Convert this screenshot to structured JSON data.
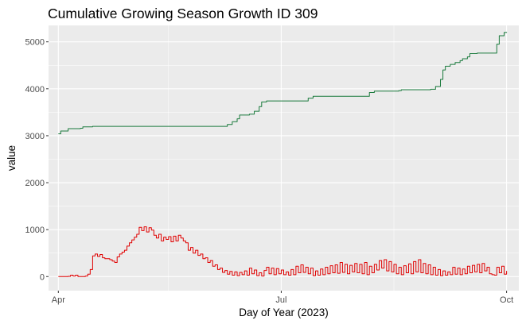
{
  "chart_data": {
    "type": "line",
    "title": "Cumulative Growing Season Growth ID 309",
    "xlabel": "Day of Year (2023)",
    "ylabel": "value",
    "x_range": [
      "2023-03-28",
      "2023-10-06"
    ],
    "ylim": [
      -300,
      5350
    ],
    "x_ticks": [
      {
        "date": "2023-04-01",
        "label": "Apr"
      },
      {
        "date": "2023-07-01",
        "label": "Jul"
      },
      {
        "date": "2023-10-01",
        "label": "Oct"
      }
    ],
    "x_minor_ticks": [
      "2023-05-16",
      "2023-08-16"
    ],
    "y_ticks": [
      0,
      1000,
      2000,
      3000,
      4000,
      5000
    ],
    "background": "#ebebeb",
    "grid": true,
    "legend": "none",
    "series": [
      {
        "color": "#1a7a3c",
        "points": [
          [
            "2023-04-01",
            3040
          ],
          [
            "2023-04-02",
            3100
          ],
          [
            "2023-04-04",
            3100
          ],
          [
            "2023-04-05",
            3150
          ],
          [
            "2023-04-10",
            3160
          ],
          [
            "2023-04-11",
            3190
          ],
          [
            "2023-04-15",
            3200
          ],
          [
            "2023-04-20",
            3200
          ],
          [
            "2023-05-01",
            3200
          ],
          [
            "2023-05-15",
            3200
          ],
          [
            "2023-06-01",
            3200
          ],
          [
            "2023-06-08",
            3200
          ],
          [
            "2023-06-09",
            3240
          ],
          [
            "2023-06-11",
            3300
          ],
          [
            "2023-06-13",
            3360
          ],
          [
            "2023-06-14",
            3440
          ],
          [
            "2023-06-18",
            3460
          ],
          [
            "2023-06-20",
            3520
          ],
          [
            "2023-06-22",
            3620
          ],
          [
            "2023-06-23",
            3720
          ],
          [
            "2023-06-25",
            3740
          ],
          [
            "2023-07-03",
            3740
          ],
          [
            "2023-07-10",
            3740
          ],
          [
            "2023-07-12",
            3800
          ],
          [
            "2023-07-14",
            3840
          ],
          [
            "2023-07-25",
            3840
          ],
          [
            "2023-08-05",
            3840
          ],
          [
            "2023-08-06",
            3920
          ],
          [
            "2023-08-08",
            3950
          ],
          [
            "2023-08-18",
            3960
          ],
          [
            "2023-08-19",
            3980
          ],
          [
            "2023-08-31",
            3990
          ],
          [
            "2023-09-02",
            4050
          ],
          [
            "2023-09-04",
            4200
          ],
          [
            "2023-09-05",
            4400
          ],
          [
            "2023-09-06",
            4480
          ],
          [
            "2023-09-08",
            4520
          ],
          [
            "2023-09-10",
            4560
          ],
          [
            "2023-09-12",
            4600
          ],
          [
            "2023-09-13",
            4640
          ],
          [
            "2023-09-15",
            4680
          ],
          [
            "2023-09-16",
            4750
          ],
          [
            "2023-09-19",
            4760
          ],
          [
            "2023-09-26",
            4760
          ],
          [
            "2023-09-27",
            4950
          ],
          [
            "2023-09-28",
            5130
          ],
          [
            "2023-09-30",
            5200
          ],
          [
            "2023-10-01",
            5210
          ]
        ]
      },
      {
        "color": "#e00000",
        "points": [
          [
            "2023-04-01",
            0
          ],
          [
            "2023-04-03",
            0
          ],
          [
            "2023-04-05",
            5
          ],
          [
            "2023-04-06",
            30
          ],
          [
            "2023-04-07",
            10
          ],
          [
            "2023-04-08",
            30
          ],
          [
            "2023-04-09",
            0
          ],
          [
            "2023-04-12",
            10
          ],
          [
            "2023-04-13",
            50
          ],
          [
            "2023-04-14",
            150
          ],
          [
            "2023-04-15",
            440
          ],
          [
            "2023-04-16",
            480
          ],
          [
            "2023-04-17",
            430
          ],
          [
            "2023-04-18",
            470
          ],
          [
            "2023-04-19",
            400
          ],
          [
            "2023-04-20",
            380
          ],
          [
            "2023-04-22",
            360
          ],
          [
            "2023-04-23",
            330
          ],
          [
            "2023-04-24",
            300
          ],
          [
            "2023-04-25",
            420
          ],
          [
            "2023-04-26",
            480
          ],
          [
            "2023-04-27",
            520
          ],
          [
            "2023-04-28",
            560
          ],
          [
            "2023-04-29",
            650
          ],
          [
            "2023-04-30",
            720
          ],
          [
            "2023-05-01",
            780
          ],
          [
            "2023-05-02",
            840
          ],
          [
            "2023-05-03",
            900
          ],
          [
            "2023-05-04",
            1050
          ],
          [
            "2023-05-05",
            980
          ],
          [
            "2023-05-06",
            1060
          ],
          [
            "2023-05-07",
            950
          ],
          [
            "2023-05-08",
            1040
          ],
          [
            "2023-05-09",
            990
          ],
          [
            "2023-05-10",
            880
          ],
          [
            "2023-05-11",
            820
          ],
          [
            "2023-05-12",
            900
          ],
          [
            "2023-05-13",
            760
          ],
          [
            "2023-05-14",
            840
          ],
          [
            "2023-05-15",
            790
          ],
          [
            "2023-05-16",
            850
          ],
          [
            "2023-05-17",
            740
          ],
          [
            "2023-05-18",
            860
          ],
          [
            "2023-05-19",
            760
          ],
          [
            "2023-05-20",
            880
          ],
          [
            "2023-05-21",
            820
          ],
          [
            "2023-05-22",
            760
          ],
          [
            "2023-05-23",
            720
          ],
          [
            "2023-05-24",
            560
          ],
          [
            "2023-05-25",
            620
          ],
          [
            "2023-05-26",
            500
          ],
          [
            "2023-05-27",
            560
          ],
          [
            "2023-05-28",
            450
          ],
          [
            "2023-05-29",
            480
          ],
          [
            "2023-05-30",
            380
          ],
          [
            "2023-05-31",
            400
          ],
          [
            "2023-06-01",
            300
          ],
          [
            "2023-06-02",
            340
          ],
          [
            "2023-06-03",
            220
          ],
          [
            "2023-06-04",
            250
          ],
          [
            "2023-06-05",
            150
          ],
          [
            "2023-06-06",
            180
          ],
          [
            "2023-06-07",
            90
          ],
          [
            "2023-06-08",
            130
          ],
          [
            "2023-06-09",
            50
          ],
          [
            "2023-06-10",
            110
          ],
          [
            "2023-06-11",
            30
          ],
          [
            "2023-06-12",
            100
          ],
          [
            "2023-06-13",
            20
          ],
          [
            "2023-06-14",
            90
          ],
          [
            "2023-06-15",
            40
          ],
          [
            "2023-06-16",
            120
          ],
          [
            "2023-06-17",
            30
          ],
          [
            "2023-06-18",
            180
          ],
          [
            "2023-06-19",
            60
          ],
          [
            "2023-06-20",
            140
          ],
          [
            "2023-06-21",
            20
          ],
          [
            "2023-06-22",
            80
          ],
          [
            "2023-06-23",
            10
          ],
          [
            "2023-06-24",
            130
          ],
          [
            "2023-06-25",
            200
          ],
          [
            "2023-06-26",
            60
          ],
          [
            "2023-06-27",
            180
          ],
          [
            "2023-06-28",
            40
          ],
          [
            "2023-06-29",
            170
          ],
          [
            "2023-06-30",
            60
          ],
          [
            "2023-07-01",
            140
          ],
          [
            "2023-07-02",
            40
          ],
          [
            "2023-07-03",
            100
          ],
          [
            "2023-07-04",
            30
          ],
          [
            "2023-07-05",
            150
          ],
          [
            "2023-07-06",
            40
          ],
          [
            "2023-07-07",
            220
          ],
          [
            "2023-07-08",
            80
          ],
          [
            "2023-07-09",
            250
          ],
          [
            "2023-07-10",
            90
          ],
          [
            "2023-07-11",
            200
          ],
          [
            "2023-07-12",
            60
          ],
          [
            "2023-07-13",
            180
          ],
          [
            "2023-07-14",
            20
          ],
          [
            "2023-07-15",
            120
          ],
          [
            "2023-07-16",
            30
          ],
          [
            "2023-07-17",
            160
          ],
          [
            "2023-07-18",
            40
          ],
          [
            "2023-07-19",
            200
          ],
          [
            "2023-07-20",
            60
          ],
          [
            "2023-07-21",
            230
          ],
          [
            "2023-07-22",
            80
          ],
          [
            "2023-07-23",
            250
          ],
          [
            "2023-07-24",
            70
          ],
          [
            "2023-07-25",
            300
          ],
          [
            "2023-07-26",
            90
          ],
          [
            "2023-07-27",
            260
          ],
          [
            "2023-07-28",
            60
          ],
          [
            "2023-07-29",
            240
          ],
          [
            "2023-07-30",
            100
          ],
          [
            "2023-07-31",
            280
          ],
          [
            "2023-08-01",
            80
          ],
          [
            "2023-08-02",
            260
          ],
          [
            "2023-08-03",
            60
          ],
          [
            "2023-08-04",
            300
          ],
          [
            "2023-08-05",
            40
          ],
          [
            "2023-08-06",
            220
          ],
          [
            "2023-08-07",
            80
          ],
          [
            "2023-08-08",
            260
          ],
          [
            "2023-08-09",
            140
          ],
          [
            "2023-08-10",
            340
          ],
          [
            "2023-08-11",
            180
          ],
          [
            "2023-08-12",
            360
          ],
          [
            "2023-08-13",
            120
          ],
          [
            "2023-08-14",
            320
          ],
          [
            "2023-08-15",
            100
          ],
          [
            "2023-08-16",
            260
          ],
          [
            "2023-08-17",
            60
          ],
          [
            "2023-08-18",
            200
          ],
          [
            "2023-08-19",
            40
          ],
          [
            "2023-08-20",
            230
          ],
          [
            "2023-08-21",
            80
          ],
          [
            "2023-08-22",
            270
          ],
          [
            "2023-08-23",
            60
          ],
          [
            "2023-08-24",
            320
          ],
          [
            "2023-08-25",
            100
          ],
          [
            "2023-08-26",
            360
          ],
          [
            "2023-08-27",
            80
          ],
          [
            "2023-08-28",
            280
          ],
          [
            "2023-08-29",
            60
          ],
          [
            "2023-08-30",
            250
          ],
          [
            "2023-08-31",
            40
          ],
          [
            "2023-09-01",
            200
          ],
          [
            "2023-09-02",
            30
          ],
          [
            "2023-09-03",
            150
          ],
          [
            "2023-09-04",
            20
          ],
          [
            "2023-09-05",
            120
          ],
          [
            "2023-09-06",
            30
          ],
          [
            "2023-09-07",
            100
          ],
          [
            "2023-09-08",
            40
          ],
          [
            "2023-09-09",
            200
          ],
          [
            "2023-09-10",
            50
          ],
          [
            "2023-09-11",
            180
          ],
          [
            "2023-09-12",
            40
          ],
          [
            "2023-09-13",
            160
          ],
          [
            "2023-09-14",
            60
          ],
          [
            "2023-09-15",
            220
          ],
          [
            "2023-09-16",
            80
          ],
          [
            "2023-09-17",
            240
          ],
          [
            "2023-09-18",
            100
          ],
          [
            "2023-09-19",
            260
          ],
          [
            "2023-09-20",
            80
          ],
          [
            "2023-09-21",
            280
          ],
          [
            "2023-09-22",
            120
          ],
          [
            "2023-09-23",
            200
          ],
          [
            "2023-09-24",
            60
          ],
          [
            "2023-09-25",
            40
          ],
          [
            "2023-09-26",
            30
          ],
          [
            "2023-09-27",
            200
          ],
          [
            "2023-09-28",
            80
          ],
          [
            "2023-09-29",
            220
          ],
          [
            "2023-09-30",
            50
          ],
          [
            "2023-10-01",
            120
          ]
        ]
      }
    ]
  }
}
